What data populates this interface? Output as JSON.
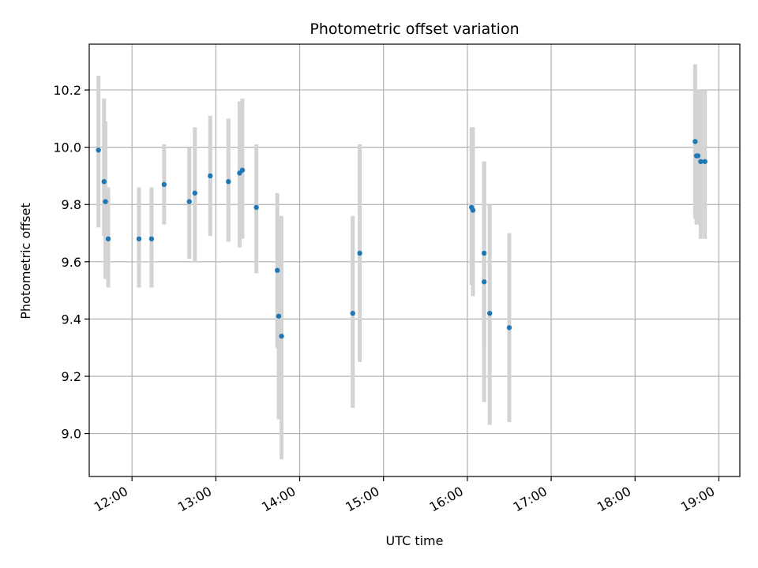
{
  "chart_data": {
    "type": "scatter",
    "title": "Photometric offset variation",
    "xlabel": "UTC time",
    "ylabel": "Photometric offset",
    "x_unit": "hours UTC",
    "xlim": [
      "11:45",
      "19:15"
    ],
    "ylim": [
      8.85,
      10.36
    ],
    "x_ticks": [
      "12:00",
      "13:00",
      "14:00",
      "15:00",
      "16:00",
      "17:00",
      "18:00",
      "19:00"
    ],
    "y_ticks": [
      "9.0",
      "9.2",
      "9.4",
      "9.6",
      "9.8",
      "10.0",
      "10.2"
    ],
    "grid": true,
    "point_color": "#1f77b4",
    "errorbar_color": "#d3d3d3",
    "points": [
      {
        "x": "11:36",
        "y": 9.99,
        "yerr_low": 9.72,
        "yerr_high": 10.25
      },
      {
        "x": "11:40",
        "y": 9.88,
        "yerr_low": 9.69,
        "yerr_high": 10.17
      },
      {
        "x": "11:41",
        "y": 9.81,
        "yerr_low": 9.54,
        "yerr_high": 10.09
      },
      {
        "x": "11:43",
        "y": 9.68,
        "yerr_low": 9.51,
        "yerr_high": 9.86
      },
      {
        "x": "12:05",
        "y": 9.68,
        "yerr_low": 9.51,
        "yerr_high": 9.86
      },
      {
        "x": "12:14",
        "y": 9.68,
        "yerr_low": 9.51,
        "yerr_high": 9.86
      },
      {
        "x": "12:23",
        "y": 9.87,
        "yerr_low": 9.73,
        "yerr_high": 10.01
      },
      {
        "x": "12:41",
        "y": 9.81,
        "yerr_low": 9.61,
        "yerr_high": 10.0
      },
      {
        "x": "12:45",
        "y": 9.84,
        "yerr_low": 9.6,
        "yerr_high": 10.07
      },
      {
        "x": "12:56",
        "y": 9.9,
        "yerr_low": 9.69,
        "yerr_high": 10.11
      },
      {
        "x": "13:09",
        "y": 9.88,
        "yerr_low": 9.67,
        "yerr_high": 10.1
      },
      {
        "x": "13:17",
        "y": 9.91,
        "yerr_low": 9.65,
        "yerr_high": 10.16
      },
      {
        "x": "13:19",
        "y": 9.92,
        "yerr_low": 9.68,
        "yerr_high": 10.17
      },
      {
        "x": "13:29",
        "y": 9.79,
        "yerr_low": 9.56,
        "yerr_high": 10.01
      },
      {
        "x": "13:44",
        "y": 9.57,
        "yerr_low": 9.3,
        "yerr_high": 9.84
      },
      {
        "x": "13:45",
        "y": 9.41,
        "yerr_low": 9.05,
        "yerr_high": 9.76
      },
      {
        "x": "13:47",
        "y": 9.34,
        "yerr_low": 8.91,
        "yerr_high": 9.76
      },
      {
        "x": "14:38",
        "y": 9.42,
        "yerr_low": 9.09,
        "yerr_high": 9.76
      },
      {
        "x": "14:43",
        "y": 9.63,
        "yerr_low": 9.25,
        "yerr_high": 10.01
      },
      {
        "x": "16:03",
        "y": 9.79,
        "yerr_low": 9.52,
        "yerr_high": 10.07
      },
      {
        "x": "16:04",
        "y": 9.78,
        "yerr_low": 9.48,
        "yerr_high": 10.07
      },
      {
        "x": "16:12",
        "y": 9.63,
        "yerr_low": 9.3,
        "yerr_high": 9.95
      },
      {
        "x": "16:12",
        "y": 9.53,
        "yerr_low": 9.11,
        "yerr_high": 9.95
      },
      {
        "x": "16:16",
        "y": 9.42,
        "yerr_low": 9.03,
        "yerr_high": 9.8
      },
      {
        "x": "16:30",
        "y": 9.37,
        "yerr_low": 9.04,
        "yerr_high": 9.7
      },
      {
        "x": "18:43",
        "y": 10.02,
        "yerr_low": 9.75,
        "yerr_high": 10.29
      },
      {
        "x": "18:44",
        "y": 9.97,
        "yerr_low": 9.73,
        "yerr_high": 10.2
      },
      {
        "x": "18:45",
        "y": 9.97,
        "yerr_low": 9.73,
        "yerr_high": 10.2
      },
      {
        "x": "18:47",
        "y": 9.95,
        "yerr_low": 9.68,
        "yerr_high": 10.2
      },
      {
        "x": "18:50",
        "y": 9.95,
        "yerr_low": 9.68,
        "yerr_high": 10.2
      }
    ]
  }
}
